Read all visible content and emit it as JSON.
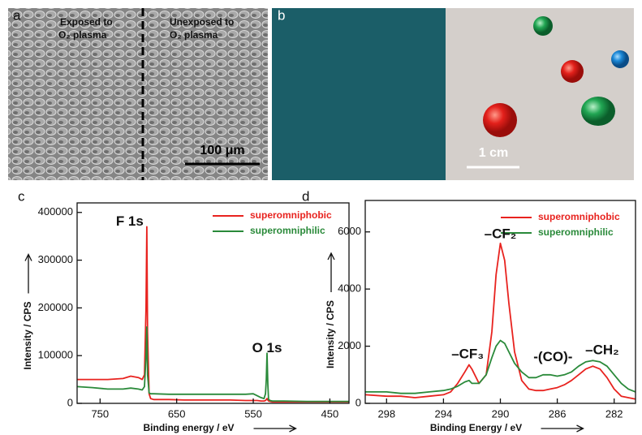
{
  "panel_a": {
    "label": "a",
    "left_caption": [
      "Exposed to",
      "O₂ plasma"
    ],
    "right_caption": [
      "Unexposed to",
      "O₂ plasma"
    ],
    "scale_bar": "100 μm"
  },
  "panel_b": {
    "label": "b",
    "scale_bar": "1 cm"
  },
  "chart_data": [
    {
      "type": "line",
      "panel_label": "c",
      "xlabel": "Binding energy / eV",
      "ylabel": "Intensity / CPS",
      "x": [
        780,
        760,
        740,
        720,
        710,
        700,
        695,
        692,
        690,
        689,
        688,
        686,
        684,
        680,
        660,
        640,
        620,
        600,
        580,
        560,
        550,
        545,
        540,
        536,
        534,
        533,
        532,
        531,
        530,
        528,
        525,
        510,
        480,
        450,
        425
      ],
      "series": [
        {
          "name": "superomniphobic",
          "color": "#e8231f",
          "values": [
            50000,
            50000,
            50000,
            52000,
            57000,
            54000,
            50000,
            60000,
            200000,
            370000,
            150000,
            20000,
            10000,
            8000,
            8000,
            7000,
            7000,
            7000,
            7000,
            6000,
            6000,
            6000,
            5000,
            5000,
            6000,
            8000,
            10000,
            7000,
            5000,
            4000,
            3000,
            3000,
            3000,
            3000,
            3000
          ]
        },
        {
          "name": "superomniphilic",
          "color": "#2a8a3a",
          "values": [
            35000,
            33000,
            30000,
            30000,
            32000,
            30000,
            28000,
            35000,
            100000,
            160000,
            60000,
            22000,
            20000,
            20000,
            19000,
            19000,
            19000,
            19000,
            19000,
            19000,
            20000,
            16000,
            12000,
            10000,
            20000,
            50000,
            105000,
            40000,
            8000,
            6000,
            5000,
            5000,
            4000,
            4000,
            4000
          ]
        }
      ],
      "xlim": [
        780,
        425
      ],
      "xticks": [
        750,
        650,
        550,
        450
      ],
      "ylim": [
        0,
        420000
      ],
      "yticks": [
        0,
        100000,
        200000,
        300000,
        400000
      ],
      "annotations": [
        "F 1s",
        "O 1s"
      ],
      "legend": "upper right",
      "grid": false
    },
    {
      "type": "line",
      "panel_label": "d",
      "xlabel": "Binding Energy / eV",
      "ylabel": "Intensity / CPS",
      "x": [
        299.5,
        298,
        297,
        296,
        295,
        294,
        293.5,
        293,
        292.5,
        292.2,
        292,
        291.5,
        291,
        290.6,
        290.3,
        290,
        289.7,
        289.4,
        289,
        288.5,
        288,
        287.5,
        287,
        286.5,
        286,
        285.5,
        285,
        284.5,
        284,
        283.5,
        283,
        282.5,
        282,
        281.5,
        281,
        280.5
      ],
      "series": [
        {
          "name": "superomniphobic",
          "color": "#e8231f",
          "values": [
            300,
            250,
            250,
            200,
            250,
            300,
            400,
            700,
            1100,
            1350,
            1200,
            700,
            1000,
            2500,
            4500,
            5600,
            5000,
            3500,
            1800,
            800,
            500,
            450,
            450,
            500,
            550,
            650,
            800,
            1000,
            1200,
            1300,
            1200,
            900,
            500,
            250,
            200,
            150
          ]
        },
        {
          "name": "superomniphilic",
          "color": "#2a8a3a",
          "values": [
            400,
            400,
            350,
            350,
            400,
            450,
            500,
            600,
            750,
            800,
            700,
            700,
            1000,
            1600,
            2000,
            2200,
            2100,
            1800,
            1400,
            1100,
            900,
            900,
            1000,
            1000,
            950,
            1000,
            1100,
            1300,
            1450,
            1500,
            1450,
            1300,
            1000,
            700,
            500,
            400
          ]
        }
      ],
      "xlim": [
        299.5,
        280.5
      ],
      "xticks": [
        298,
        294,
        290,
        286,
        282
      ],
      "ylim": [
        0,
        7100
      ],
      "yticks": [
        0,
        2000,
        4000,
        6000
      ],
      "annotations": [
        "–CF₃",
        "–CF₂",
        "-(CO)-",
        "–CH₂"
      ],
      "legend": "upper right",
      "grid": false
    }
  ]
}
